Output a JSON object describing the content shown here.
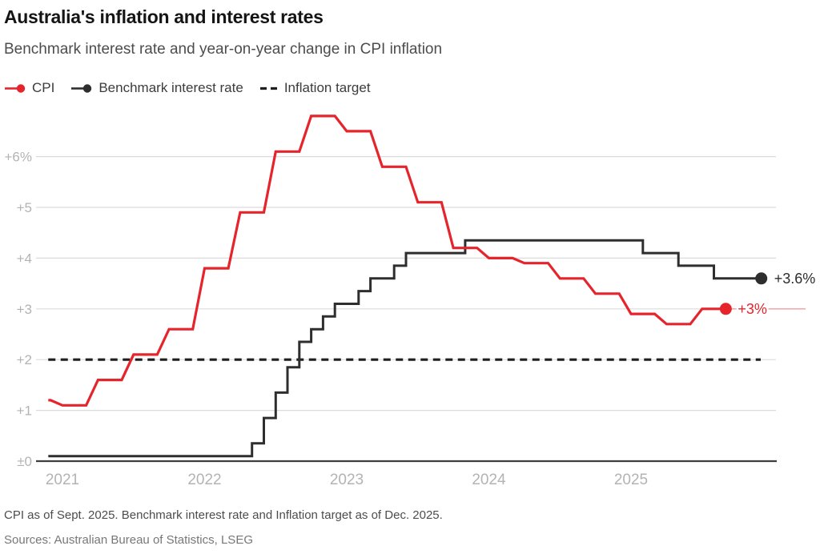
{
  "header": {
    "title": "Australia's inflation and interest rates",
    "subtitle": "Benchmark interest rate and year-on-year change in CPI inflation"
  },
  "legend": [
    {
      "label": "CPI",
      "color": "#e5242c",
      "icon": "line-dot"
    },
    {
      "label": "Benchmark interest rate",
      "color": "#2e2e2e",
      "icon": "line-dot"
    },
    {
      "label": "Inflation target",
      "color": "#1f1f1f",
      "icon": "dashes"
    }
  ],
  "footer": {
    "note": "CPI as of Sept. 2025. Benchmark interest rate and Inflation target as of Dec. 2025.",
    "sources": "Sources: Australian Bureau of Statistics, LSEG"
  },
  "chart_data": {
    "type": "line",
    "title": "Australia's inflation and interest rates",
    "subtitle": "Benchmark interest rate and year-on-year change in CPI inflation",
    "unit": "%",
    "ylim": [
      0,
      7
    ],
    "y_ticks": [
      {
        "v": 6,
        "label": "+6%"
      },
      {
        "v": 5,
        "label": "+5"
      },
      {
        "v": 4,
        "label": "+4"
      },
      {
        "v": 3,
        "label": "+3"
      },
      {
        "v": 2,
        "label": "+2"
      },
      {
        "v": 1,
        "label": "+1"
      },
      {
        "v": 0,
        "label": "±0"
      }
    ],
    "x_ticks": [
      "2021",
      "2022",
      "2023",
      "2024",
      "2025"
    ],
    "x_domain_start": 2020.9,
    "grid_color": "#dcdcdc",
    "axis_color": "#3f3f3f",
    "tick_label_color": "#b3b3b3",
    "series": {
      "cpi": {
        "name": "CPI",
        "color": "#e5242c",
        "leader_color": "#f3abad",
        "frequency": "quarterly",
        "as_of": "Sept. 2025",
        "end_label": "+3%",
        "quarters": [
          "2020-Q4",
          "2021-Q1",
          "2021-Q2",
          "2021-Q3",
          "2021-Q4",
          "2022-Q1",
          "2022-Q2",
          "2022-Q3",
          "2022-Q4",
          "2023-Q1",
          "2023-Q2",
          "2023-Q3",
          "2023-Q4",
          "2024-Q1",
          "2024-Q2",
          "2024-Q3",
          "2024-Q4",
          "2025-Q1",
          "2025-Q2",
          "2025-Q3"
        ],
        "values": [
          1.2,
          1.1,
          1.6,
          2.1,
          2.6,
          3.8,
          4.9,
          6.1,
          6.8,
          6.5,
          5.8,
          5.1,
          4.2,
          4.0,
          3.9,
          3.6,
          3.3,
          2.9,
          2.7,
          3.0
        ]
      },
      "benchmark_rate": {
        "name": "Benchmark interest rate",
        "color": "#2e2e2e",
        "style": "step",
        "as_of": "Dec. 2025",
        "end_label": "+3.6%",
        "end_date": "2025-12",
        "changes": [
          [
            "2020-11",
            0.1
          ],
          [
            "2022-05",
            0.35
          ],
          [
            "2022-06",
            0.85
          ],
          [
            "2022-07",
            1.35
          ],
          [
            "2022-08",
            1.85
          ],
          [
            "2022-09",
            2.35
          ],
          [
            "2022-10",
            2.6
          ],
          [
            "2022-11",
            2.85
          ],
          [
            "2022-12",
            3.1
          ],
          [
            "2023-02",
            3.35
          ],
          [
            "2023-03",
            3.6
          ],
          [
            "2023-05",
            3.85
          ],
          [
            "2023-06",
            4.1
          ],
          [
            "2023-11",
            4.35
          ],
          [
            "2025-02",
            4.1
          ],
          [
            "2025-05",
            3.85
          ],
          [
            "2025-08",
            3.6
          ]
        ]
      },
      "inflation_target": {
        "name": "Inflation target",
        "style": "dashed",
        "color": "#1f1f1f",
        "value": 2
      }
    }
  }
}
